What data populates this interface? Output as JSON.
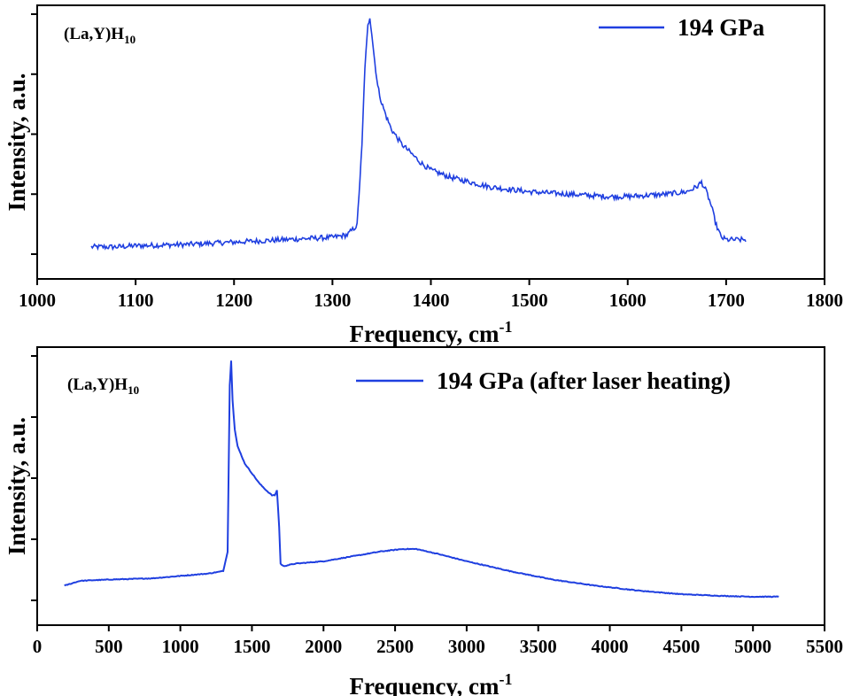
{
  "chart_data": [
    {
      "type": "line",
      "title": "",
      "xlabel": "Frequency, cm",
      "xlabel_sup": "-1",
      "ylabel": "Intensity, a.u.",
      "xlim": [
        1000,
        1800
      ],
      "ylim": [
        0,
        1
      ],
      "xticks": [
        1000,
        1100,
        1200,
        1300,
        1400,
        1500,
        1600,
        1700,
        1800
      ],
      "xtick_labels": [
        "1000",
        "1100",
        "1200",
        "1300",
        "1400",
        "1500",
        "1600",
        "1700",
        "1800"
      ],
      "ytick_count": 5,
      "grid": false,
      "legend_position": "top-right",
      "annotation": {
        "text": "(La,Y)H",
        "sub": "10"
      },
      "color": "#1f3fe0",
      "series": [
        {
          "name": "194 GPa",
          "x": [
            1055,
            1080,
            1100,
            1150,
            1200,
            1250,
            1300,
            1315,
            1325,
            1330,
            1333,
            1336,
            1338,
            1340,
            1343,
            1346,
            1350,
            1355,
            1360,
            1370,
            1380,
            1390,
            1400,
            1420,
            1440,
            1460,
            1480,
            1500,
            1520,
            1540,
            1560,
            1580,
            1600,
            1620,
            1640,
            1660,
            1670,
            1675,
            1680,
            1685,
            1690,
            1695,
            1700,
            1710,
            1720
          ],
          "y": [
            0.03,
            0.03,
            0.035,
            0.04,
            0.05,
            0.06,
            0.07,
            0.08,
            0.12,
            0.45,
            0.78,
            0.95,
            0.99,
            0.92,
            0.8,
            0.7,
            0.63,
            0.57,
            0.52,
            0.46,
            0.42,
            0.38,
            0.35,
            0.32,
            0.3,
            0.28,
            0.27,
            0.26,
            0.255,
            0.25,
            0.245,
            0.24,
            0.24,
            0.245,
            0.25,
            0.26,
            0.28,
            0.3,
            0.26,
            0.2,
            0.12,
            0.07,
            0.06,
            0.06,
            0.06
          ]
        }
      ]
    },
    {
      "type": "line",
      "title": "",
      "xlabel": "Frequency, cm",
      "xlabel_sup": "-1",
      "ylabel": "Intensity, a.u.",
      "xlim": [
        0,
        5500
      ],
      "ylim": [
        0,
        1
      ],
      "xticks": [
        0,
        500,
        1000,
        1500,
        2000,
        2500,
        3000,
        3500,
        4000,
        4500,
        5000,
        5500
      ],
      "xtick_labels": [
        "0",
        "500",
        "1000",
        "1500",
        "2000",
        "2500",
        "3000",
        "3500",
        "4000",
        "4500",
        "5000",
        "5500"
      ],
      "ytick_count": 5,
      "grid": false,
      "legend_position": "top-right",
      "annotation": {
        "text": "(La,Y)H",
        "sub": "10"
      },
      "color": "#1f3fe0",
      "series": [
        {
          "name": "194 GPa (after laser heating)",
          "x": [
            190,
            300,
            500,
            800,
            1000,
            1200,
            1300,
            1330,
            1345,
            1355,
            1365,
            1380,
            1400,
            1450,
            1500,
            1550,
            1600,
            1640,
            1660,
            1675,
            1690,
            1700,
            1720,
            1800,
            2000,
            2200,
            2400,
            2550,
            2650,
            2800,
            3000,
            3300,
            3600,
            3900,
            4200,
            4500,
            4800,
            5000,
            5180
          ],
          "y": [
            0.06,
            0.08,
            0.085,
            0.09,
            0.1,
            0.11,
            0.12,
            0.2,
            0.88,
            0.98,
            0.82,
            0.7,
            0.63,
            0.56,
            0.52,
            0.48,
            0.45,
            0.43,
            0.43,
            0.45,
            0.3,
            0.15,
            0.14,
            0.15,
            0.16,
            0.18,
            0.2,
            0.21,
            0.21,
            0.19,
            0.16,
            0.12,
            0.085,
            0.06,
            0.04,
            0.025,
            0.018,
            0.015,
            0.015
          ]
        }
      ]
    }
  ]
}
